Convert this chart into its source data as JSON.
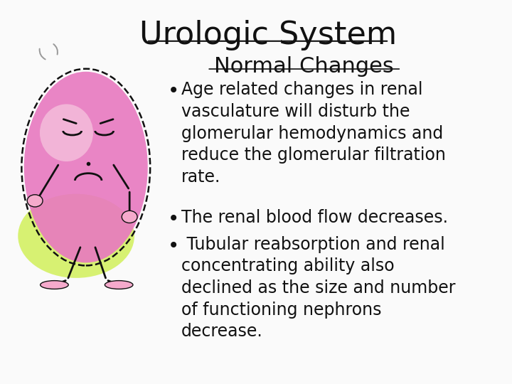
{
  "bg_color": "#FAFAFA",
  "title": "Urologic System",
  "title_fontsize": 32,
  "title_color": "#111111",
  "subtitle": "Normal Changes",
  "subtitle_fontsize": 22,
  "subtitle_color": "#111111",
  "bullet1_line1": "Age related changes in renal",
  "bullet1_line2": "vasculature will disturb the",
  "bullet1_line3": "glomerular hemodynamics and",
  "bullet1_line4": "reduce the glomerular filtration",
  "bullet1_line5": "rate.",
  "bullet2": "The renal blood flow decreases.",
  "bullet3_line1": " Tubular reabsorption and renal",
  "bullet3_line2": "concentrating ability also",
  "bullet3_line3": "declined as the size and number",
  "bullet3_line4": "of functioning nephrons",
  "bullet3_line5": "decrease.",
  "bullet_fontsize": 17,
  "bullet_color": "#111111",
  "font_family": "Comic Sans MS",
  "kidney_color": "#E878C0",
  "kidney_highlight": "#F5C0DC",
  "kidney_edge": "#111111",
  "glow_color": "#CCEE44",
  "hand_foot_color": "#F5AACC"
}
